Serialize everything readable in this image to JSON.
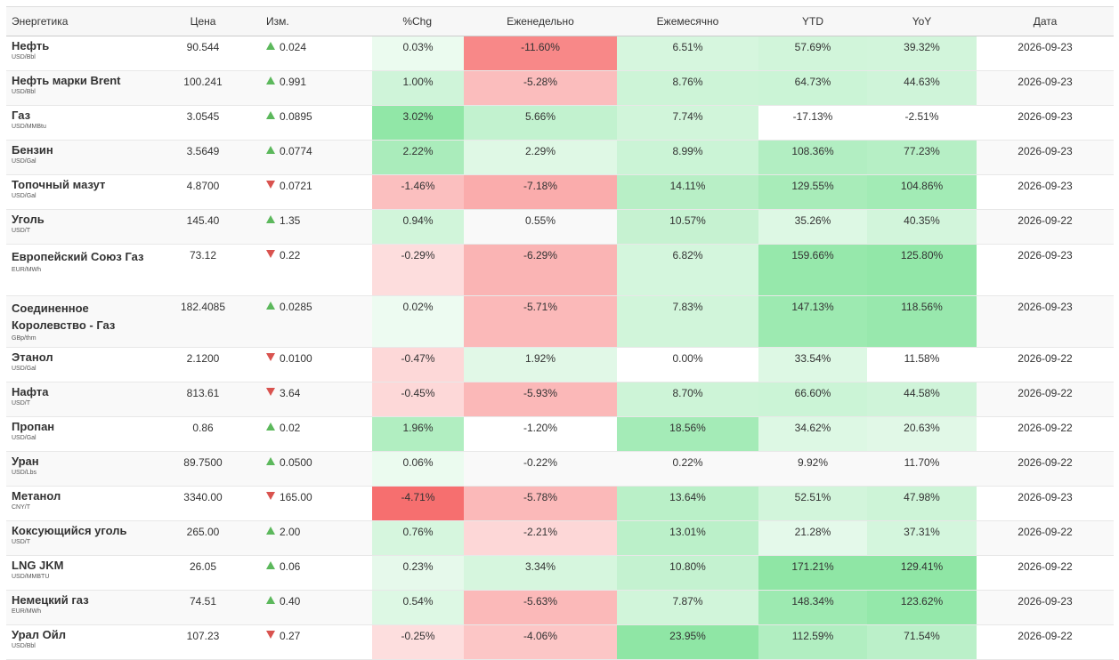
{
  "headers": {
    "name": "Энергетика",
    "price": "Цена",
    "change": "Изм.",
    "pct": "%Chg",
    "weekly": "Еженедельно",
    "monthly": "Ежемесячно",
    "ytd": "YTD",
    "yoy": "YoY",
    "date": "Дата"
  },
  "rows": [
    {
      "name": "Нефть",
      "unit": "USD/Bbl",
      "price": "90.544",
      "dir": "up",
      "change": "0.024",
      "pct": "0.03%",
      "weekly": "-11.60%",
      "monthly": "6.51%",
      "ytd": "57.69%",
      "yoy": "39.32%",
      "date": "2026-09-23"
    },
    {
      "name": "Нефть марки Brent",
      "unit": "USD/Bbl",
      "price": "100.241",
      "dir": "up",
      "change": "0.991",
      "pct": "1.00%",
      "weekly": "-5.28%",
      "monthly": "8.76%",
      "ytd": "64.73%",
      "yoy": "44.63%",
      "date": "2026-09-23"
    },
    {
      "name": "Газ",
      "unit": "USD/MMBtu",
      "price": "3.0545",
      "dir": "up",
      "change": "0.0895",
      "pct": "3.02%",
      "weekly": "5.66%",
      "monthly": "7.74%",
      "ytd": "-17.13%",
      "yoy": "-2.51%",
      "date": "2026-09-23"
    },
    {
      "name": "Бензин",
      "unit": "USD/Gal",
      "price": "3.5649",
      "dir": "up",
      "change": "0.0774",
      "pct": "2.22%",
      "weekly": "2.29%",
      "monthly": "8.99%",
      "ytd": "108.36%",
      "yoy": "77.23%",
      "date": "2026-09-23"
    },
    {
      "name": "Топочный мазут",
      "unit": "USD/Gal",
      "price": "4.8700",
      "dir": "down",
      "change": "0.0721",
      "pct": "-1.46%",
      "weekly": "-7.18%",
      "monthly": "14.11%",
      "ytd": "129.55%",
      "yoy": "104.86%",
      "date": "2026-09-23"
    },
    {
      "name": "Уголь",
      "unit": "USD/T",
      "price": "145.40",
      "dir": "up",
      "change": "1.35",
      "pct": "0.94%",
      "weekly": "0.55%",
      "monthly": "10.57%",
      "ytd": "35.26%",
      "yoy": "40.35%",
      "date": "2026-09-22"
    },
    {
      "name": "Европейский Союз Газ",
      "unit": "EUR/MWh",
      "price": "73.12",
      "dir": "down",
      "change": "0.22",
      "pct": "-0.29%",
      "weekly": "-6.29%",
      "monthly": "6.82%",
      "ytd": "159.66%",
      "yoy": "125.80%",
      "date": "2026-09-23"
    },
    {
      "name": "Соединенное Королевство - Газ",
      "unit": "GBp/thm",
      "price": "182.4085",
      "dir": "up",
      "change": "0.0285",
      "pct": "0.02%",
      "weekly": "-5.71%",
      "monthly": "7.83%",
      "ytd": "147.13%",
      "yoy": "118.56%",
      "date": "2026-09-23"
    },
    {
      "name": "Этанол",
      "unit": "USD/Gal",
      "price": "2.1200",
      "dir": "down",
      "change": "0.0100",
      "pct": "-0.47%",
      "weekly": "1.92%",
      "monthly": "0.00%",
      "ytd": "33.54%",
      "yoy": "11.58%",
      "date": "2026-09-22"
    },
    {
      "name": "Нафта",
      "unit": "USD/T",
      "price": "813.61",
      "dir": "down",
      "change": "3.64",
      "pct": "-0.45%",
      "weekly": "-5.93%",
      "monthly": "8.70%",
      "ytd": "66.60%",
      "yoy": "44.58%",
      "date": "2026-09-22"
    },
    {
      "name": "Пропан",
      "unit": "USD/Gal",
      "price": "0.86",
      "dir": "up",
      "change": "0.02",
      "pct": "1.96%",
      "weekly": "-1.20%",
      "monthly": "18.56%",
      "ytd": "34.62%",
      "yoy": "20.63%",
      "date": "2026-09-22"
    },
    {
      "name": "Уран",
      "unit": "USD/Lbs",
      "price": "89.7500",
      "dir": "up",
      "change": "0.0500",
      "pct": "0.06%",
      "weekly": "-0.22%",
      "monthly": "0.22%",
      "ytd": "9.92%",
      "yoy": "11.70%",
      "date": "2026-09-22"
    },
    {
      "name": "Метанол",
      "unit": "CNY/T",
      "price": "3340.00",
      "dir": "down",
      "change": "165.00",
      "pct": "-4.71%",
      "weekly": "-5.78%",
      "monthly": "13.64%",
      "ytd": "52.51%",
      "yoy": "47.98%",
      "date": "2026-09-23"
    },
    {
      "name": "Коксующийся уголь",
      "unit": "USD/T",
      "price": "265.00",
      "dir": "up",
      "change": "2.00",
      "pct": "0.76%",
      "weekly": "-2.21%",
      "monthly": "13.01%",
      "ytd": "21.28%",
      "yoy": "37.31%",
      "date": "2026-09-22"
    },
    {
      "name": "LNG JKM",
      "unit": "USD/MMBTU",
      "price": "26.05",
      "dir": "up",
      "change": "0.06",
      "pct": "0.23%",
      "weekly": "3.34%",
      "monthly": "10.80%",
      "ytd": "171.21%",
      "yoy": "129.41%",
      "date": "2026-09-22"
    },
    {
      "name": "Немецкий газ",
      "unit": "EUR/MWh",
      "price": "74.51",
      "dir": "up",
      "change": "0.40",
      "pct": "0.54%",
      "weekly": "-5.63%",
      "monthly": "7.87%",
      "ytd": "148.34%",
      "yoy": "123.62%",
      "date": "2026-09-23"
    },
    {
      "name": "Урал Ойл",
      "unit": "USD/Bbl",
      "price": "107.23",
      "dir": "down",
      "change": "0.27",
      "pct": "-0.25%",
      "weekly": "-4.06%",
      "monthly": "23.95%",
      "ytd": "112.59%",
      "yoy": "71.54%",
      "date": "2026-09-22"
    }
  ],
  "colors": {
    "up": "#5cb85c",
    "down": "#d9534f"
  }
}
